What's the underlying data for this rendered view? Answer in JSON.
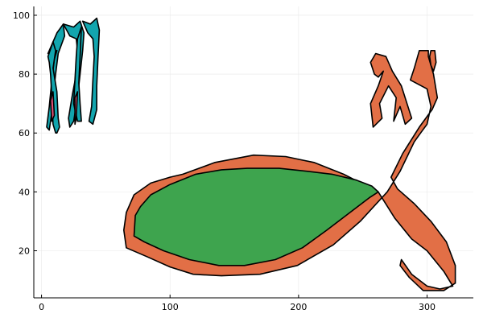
{
  "chart_data": {
    "type": "area",
    "title": "",
    "xlabel": "",
    "ylabel": "",
    "xlim": [
      -6,
      336
    ],
    "ylim": [
      4,
      103
    ],
    "grid": true,
    "legend": "none",
    "x_ticks": [
      0,
      100,
      200,
      300
    ],
    "y_ticks": [
      20,
      40,
      60,
      80,
      100
    ],
    "x_tick_labels": [
      "0",
      "100",
      "200",
      "300"
    ],
    "y_tick_labels": [
      "20",
      "40",
      "60",
      "80",
      "100"
    ],
    "series": [
      {
        "color": "#e26f46",
        "polygon": [
          [
            110,
            46
          ],
          [
            135,
            50
          ],
          [
            165,
            52.5
          ],
          [
            190,
            52
          ],
          [
            212,
            50
          ],
          [
            235,
            46
          ],
          [
            262,
            40
          ],
          [
            275,
            31
          ],
          [
            288,
            24
          ],
          [
            300,
            20
          ],
          [
            313,
            13
          ],
          [
            320,
            8
          ],
          [
            310,
            7
          ],
          [
            300,
            8
          ],
          [
            288,
            12
          ],
          [
            280,
            17
          ],
          [
            279,
            15
          ],
          [
            286,
            11
          ],
          [
            297,
            6.5
          ],
          [
            313,
            6.5
          ],
          [
            322,
            9
          ],
          [
            322,
            15
          ],
          [
            315,
            23
          ],
          [
            303,
            30
          ],
          [
            290,
            36
          ],
          [
            277,
            41
          ],
          [
            272,
            45
          ],
          [
            281,
            53
          ],
          [
            294,
            62
          ],
          [
            304,
            68
          ],
          [
            308,
            72
          ],
          [
            305,
            80
          ],
          [
            301,
            86
          ],
          [
            301,
            88
          ],
          [
            294,
            88
          ],
          [
            290,
            82
          ],
          [
            287,
            78
          ],
          [
            300,
            75
          ],
          [
            303,
            69
          ],
          [
            300,
            63
          ],
          [
            295,
            60
          ],
          [
            290,
            57
          ],
          [
            279,
            47
          ],
          [
            269,
            40
          ],
          [
            248,
            30
          ],
          [
            227,
            22
          ],
          [
            199,
            15
          ],
          [
            170,
            12
          ],
          [
            140,
            11.5
          ],
          [
            118,
            12
          ],
          [
            100,
            14.5
          ],
          [
            82,
            18
          ],
          [
            66,
            21
          ],
          [
            64,
            27
          ],
          [
            66,
            33
          ],
          [
            72,
            39
          ],
          [
            85,
            43
          ],
          [
            100,
            45
          ]
        ]
      },
      {
        "color": "#e26f46",
        "polygon": [
          [
            280,
            76
          ],
          [
            273,
            81
          ],
          [
            268,
            86
          ],
          [
            260,
            87
          ],
          [
            256,
            84
          ],
          [
            259,
            80
          ],
          [
            262,
            79
          ],
          [
            266,
            81
          ],
          [
            262,
            76
          ],
          [
            256,
            70
          ],
          [
            258,
            62
          ],
          [
            265,
            65
          ],
          [
            263,
            70
          ],
          [
            270,
            76
          ],
          [
            276,
            72
          ],
          [
            274,
            64
          ],
          [
            279,
            69
          ],
          [
            283,
            63
          ],
          [
            288,
            65
          ]
        ]
      },
      {
        "color": "#e26f46",
        "polygon": [
          [
            303,
            88
          ],
          [
            306,
            88
          ],
          [
            307,
            84
          ],
          [
            305,
            81
          ],
          [
            303,
            83
          ],
          [
            302,
            86
          ]
        ]
      },
      {
        "color": "#3ea44e",
        "polygon": [
          [
            72,
            25
          ],
          [
            73,
            32
          ],
          [
            77,
            35
          ],
          [
            85,
            39
          ],
          [
            100,
            42.5
          ],
          [
            120,
            46
          ],
          [
            140,
            47.5
          ],
          [
            160,
            48
          ],
          [
            185,
            48
          ],
          [
            207,
            47
          ],
          [
            226,
            46
          ],
          [
            245,
            44
          ],
          [
            257,
            42
          ],
          [
            262,
            40
          ],
          [
            255,
            38
          ],
          [
            240,
            33
          ],
          [
            222,
            27
          ],
          [
            203,
            21
          ],
          [
            182,
            17
          ],
          [
            158,
            15
          ],
          [
            138,
            15
          ],
          [
            115,
            17
          ],
          [
            95,
            20
          ],
          [
            80,
            23
          ]
        ]
      },
      {
        "color": "#12a5ae",
        "polygon": [
          [
            5,
            87
          ],
          [
            12,
            94
          ],
          [
            17,
            97
          ],
          [
            18,
            93
          ],
          [
            13,
            87
          ],
          [
            11,
            80
          ],
          [
            9,
            72
          ],
          [
            8,
            67
          ],
          [
            6,
            61
          ],
          [
            4,
            62
          ],
          [
            6,
            69
          ],
          [
            8,
            78
          ],
          [
            10,
            85
          ],
          [
            12,
            88
          ]
        ]
      },
      {
        "color": "#12a5ae",
        "polygon": [
          [
            17,
            97
          ],
          [
            25,
            96
          ],
          [
            30,
            98
          ],
          [
            33,
            94
          ],
          [
            32,
            88
          ],
          [
            30,
            80
          ],
          [
            28,
            72
          ],
          [
            25,
            64
          ],
          [
            22,
            62
          ],
          [
            21,
            65
          ],
          [
            24,
            73
          ],
          [
            27,
            80
          ],
          [
            28,
            88
          ],
          [
            27,
            92
          ],
          [
            22,
            93
          ]
        ]
      },
      {
        "color": "#12a5ae",
        "polygon": [
          [
            32,
            98
          ],
          [
            38,
            97
          ],
          [
            43,
            99
          ],
          [
            45,
            95
          ],
          [
            44,
            86
          ],
          [
            43,
            76
          ],
          [
            43,
            68
          ],
          [
            40,
            63
          ],
          [
            37,
            64
          ],
          [
            39,
            69
          ],
          [
            40,
            78
          ],
          [
            41,
            86
          ],
          [
            40,
            92
          ],
          [
            36,
            94
          ]
        ]
      },
      {
        "color": "#12a5ae",
        "polygon": [
          [
            5,
            86
          ],
          [
            9,
            91
          ],
          [
            11,
            88
          ],
          [
            9,
            82
          ],
          [
            12,
            74
          ],
          [
            13,
            65
          ],
          [
            14,
            62
          ],
          [
            12,
            60
          ],
          [
            11,
            60
          ],
          [
            9,
            63
          ],
          [
            8,
            72
          ],
          [
            7,
            80
          ],
          [
            6,
            84
          ]
        ]
      },
      {
        "color": "#12a5ae",
        "polygon": [
          [
            28,
            92
          ],
          [
            31,
            96
          ],
          [
            30,
            86
          ],
          [
            29,
            77
          ],
          [
            30,
            70
          ],
          [
            31,
            64
          ],
          [
            28,
            64
          ],
          [
            25,
            70
          ],
          [
            26,
            78
          ],
          [
            27,
            86
          ]
        ]
      },
      {
        "color": "#e6557a",
        "polygon": [
          [
            7,
            71
          ],
          [
            9,
            74
          ],
          [
            10,
            66
          ],
          [
            8,
            64
          ]
        ]
      },
      {
        "color": "#e6557a",
        "polygon": [
          [
            26,
            72
          ],
          [
            28,
            74
          ],
          [
            27,
            65
          ],
          [
            26,
            63
          ]
        ]
      }
    ]
  }
}
